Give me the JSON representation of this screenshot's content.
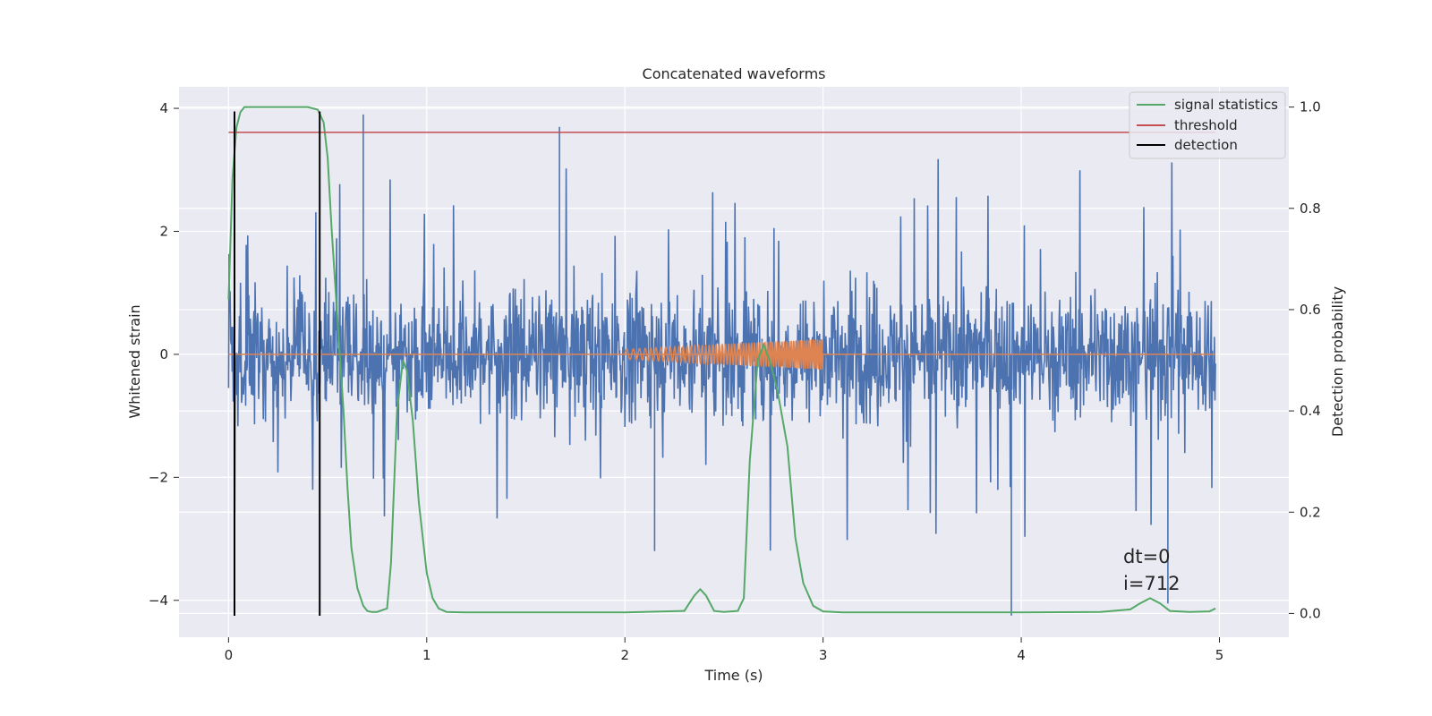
{
  "chart_data": {
    "type": "line",
    "title": "Concatenated waveforms",
    "xlabel": "Time (s)",
    "ylabel": "Whitened strain",
    "y2label": "Detection probability",
    "xlim": [
      -0.25,
      5.35
    ],
    "ylim": [
      -4.6,
      4.35
    ],
    "y2lim": [
      -0.047,
      1.04
    ],
    "xticks": [
      0,
      1,
      2,
      3,
      4,
      5
    ],
    "xtick_labels": [
      "0",
      "1",
      "2",
      "3",
      "4",
      "5"
    ],
    "yticks": [
      4,
      2,
      0,
      -2,
      -4
    ],
    "ytick_labels": [
      "4",
      "2",
      "0",
      "−2",
      "−4"
    ],
    "y2ticks": [
      1.0,
      0.8,
      0.6,
      0.4,
      0.2,
      0.0
    ],
    "y2tick_labels": [
      "1.0",
      "0.8",
      "0.6",
      "0.4",
      "0.2",
      "0.0"
    ],
    "grid": true,
    "legend_position": "top-right",
    "colors": {
      "background": "#eaeaf2",
      "grid": "#ffffff",
      "strain": "#4c72b0",
      "waveform": "#dd8452",
      "signal_statistics": "#55a868",
      "threshold": "#c44e52",
      "detection": "#000000"
    },
    "series": [
      {
        "name": "signal statistics",
        "axis": "right",
        "x": [
          0.0,
          0.02,
          0.04,
          0.06,
          0.08,
          0.1,
          0.15,
          0.2,
          0.3,
          0.4,
          0.45,
          0.48,
          0.5,
          0.52,
          0.55,
          0.58,
          0.6,
          0.62,
          0.65,
          0.68,
          0.7,
          0.72,
          0.75,
          0.8,
          0.82,
          0.85,
          0.88,
          0.9,
          0.93,
          0.96,
          1.0,
          1.03,
          1.06,
          1.1,
          1.2,
          1.5,
          2.0,
          2.3,
          2.35,
          2.38,
          2.41,
          2.45,
          2.5,
          2.57,
          2.6,
          2.63,
          2.67,
          2.7,
          2.73,
          2.77,
          2.82,
          2.86,
          2.9,
          2.95,
          3.0,
          3.1,
          3.5,
          4.0,
          4.4,
          4.55,
          4.6,
          4.65,
          4.7,
          4.75,
          4.85,
          4.95,
          4.98
        ],
        "y": [
          0.62,
          0.86,
          0.96,
          0.99,
          1.0,
          1.0,
          1.0,
          1.0,
          1.0,
          1.0,
          0.995,
          0.97,
          0.9,
          0.76,
          0.58,
          0.4,
          0.25,
          0.13,
          0.05,
          0.015,
          0.005,
          0.003,
          0.003,
          0.01,
          0.1,
          0.4,
          0.5,
          0.48,
          0.38,
          0.22,
          0.08,
          0.03,
          0.01,
          0.003,
          0.002,
          0.002,
          0.002,
          0.005,
          0.035,
          0.048,
          0.035,
          0.005,
          0.003,
          0.005,
          0.03,
          0.3,
          0.5,
          0.53,
          0.5,
          0.44,
          0.33,
          0.15,
          0.06,
          0.015,
          0.004,
          0.002,
          0.002,
          0.002,
          0.003,
          0.008,
          0.02,
          0.03,
          0.02,
          0.005,
          0.003,
          0.004,
          0.01
        ]
      },
      {
        "name": "threshold",
        "axis": "right",
        "x": [
          0.0,
          4.98
        ],
        "y": [
          0.95,
          0.95
        ]
      },
      {
        "name": "detection",
        "axis": "left",
        "x_values": [
          0.03,
          0.46
        ],
        "y_range": [
          -4.25,
          3.95
        ]
      }
    ],
    "strain_noise": {
      "axis": "left",
      "x_range": [
        0.0,
        4.98
      ],
      "typical_range": [
        -1.0,
        1.0
      ],
      "peaks": [
        {
          "x": 0.68,
          "y": 3.9
        },
        {
          "x": 1.67,
          "y": 3.7
        },
        {
          "x": 0.68,
          "y": 3.85
        },
        {
          "x": 3.95,
          "y": -4.25
        },
        {
          "x": 4.74,
          "y": -4.05
        },
        {
          "x": 2.15,
          "y": -3.2
        }
      ]
    },
    "waveform": {
      "axis": "left",
      "x_range": [
        2.0,
        3.0
      ],
      "amplitude_start": 0.08,
      "amplitude_end": 0.25
    },
    "annotations": [
      "dt=0",
      "i=712"
    ]
  }
}
